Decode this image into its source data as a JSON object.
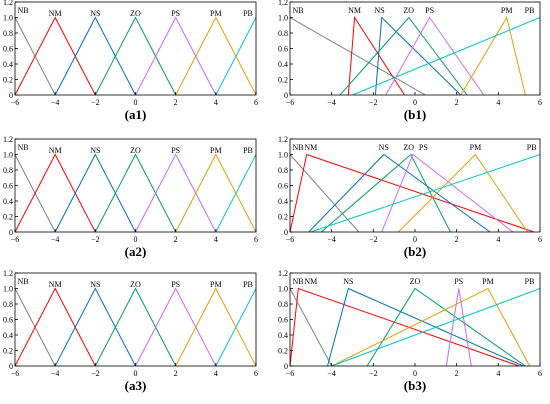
{
  "chart_data": [
    {
      "id": "a1",
      "caption": "(a1)",
      "type": "line",
      "xlim": [
        -6,
        6
      ],
      "ylim": [
        0,
        1.2
      ],
      "xticks": [
        -6,
        -4,
        -2,
        0,
        2,
        4,
        6
      ],
      "yticks": [
        0,
        0.2,
        0.4,
        0.6,
        0.8,
        1.0,
        1.2
      ],
      "grid": false,
      "series": [
        {
          "name": "NB",
          "color": "#808080",
          "x": [
            -6,
            -4
          ],
          "y": [
            1,
            0
          ],
          "label_x": -6,
          "label_y": 1.1
        },
        {
          "name": "NM",
          "color": "#ff0000",
          "x": [
            -6,
            -4,
            -2
          ],
          "y": [
            0,
            1,
            0
          ],
          "label_x": -4,
          "label_y": 1.06
        },
        {
          "name": "NS",
          "color": "#0070c0",
          "x": [
            -4,
            -2,
            0
          ],
          "y": [
            0,
            1,
            0
          ],
          "label_x": -2,
          "label_y": 1.06
        },
        {
          "name": "ZO",
          "color": "#00a060",
          "x": [
            -2,
            0,
            2
          ],
          "y": [
            0,
            1,
            0
          ],
          "label_x": 0,
          "label_y": 1.06
        },
        {
          "name": "PS",
          "color": "#cc66ff",
          "x": [
            0,
            2,
            4
          ],
          "y": [
            0,
            1,
            0
          ],
          "label_x": 2,
          "label_y": 1.06
        },
        {
          "name": "PM",
          "color": "#e0a000",
          "x": [
            2,
            4,
            6
          ],
          "y": [
            0,
            1,
            0
          ],
          "label_x": 4,
          "label_y": 1.06
        },
        {
          "name": "PB",
          "color": "#00c8c8",
          "x": [
            4,
            6
          ],
          "y": [
            0,
            1
          ],
          "label_x": 5.7,
          "label_y": 1.06
        }
      ]
    },
    {
      "id": "b1",
      "caption": "(b1)",
      "type": "line",
      "xlim": [
        -6,
        6
      ],
      "ylim": [
        0,
        1.2
      ],
      "xticks": [
        -6,
        -4,
        -2,
        0,
        2,
        4,
        6
      ],
      "yticks": [
        0,
        0.2,
        0.4,
        0.6,
        0.8,
        1.0,
        1.2
      ],
      "grid": false,
      "series": [
        {
          "name": "NB",
          "color": "#808080",
          "x": [
            -6,
            0.5
          ],
          "y": [
            1,
            0
          ],
          "label_x": -5.7,
          "label_y": 1.1
        },
        {
          "name": "NM",
          "color": "#ff0000",
          "x": [
            -3.2,
            -2.9,
            -0.5
          ],
          "y": [
            0,
            1,
            0
          ],
          "label_x": -2.9,
          "label_y": 1.1
        },
        {
          "name": "NS",
          "color": "#0070c0",
          "x": [
            -1.9,
            -1.6,
            2.2
          ],
          "y": [
            0,
            1,
            0
          ],
          "label_x": -1.7,
          "label_y": 1.1
        },
        {
          "name": "ZO",
          "color": "#00a060",
          "x": [
            -3.6,
            -0.3,
            2.5
          ],
          "y": [
            0,
            1,
            0
          ],
          "label_x": -0.3,
          "label_y": 1.1
        },
        {
          "name": "PS",
          "color": "#cc66ff",
          "x": [
            -1.4,
            0.7,
            3.3
          ],
          "y": [
            0,
            1,
            0
          ],
          "label_x": 0.7,
          "label_y": 1.1
        },
        {
          "name": "PM",
          "color": "#e0a000",
          "x": [
            2.2,
            4.4,
            5.3
          ],
          "y": [
            0,
            1,
            0
          ],
          "label_x": 4.4,
          "label_y": 1.1
        },
        {
          "name": "PB",
          "color": "#00c8c8",
          "x": [
            -3.0,
            6
          ],
          "y": [
            0,
            1
          ],
          "label_x": 5.5,
          "label_y": 1.1
        }
      ]
    },
    {
      "id": "a2",
      "caption": "(a2)",
      "type": "line",
      "xlim": [
        -6,
        6
      ],
      "ylim": [
        0,
        1.2
      ],
      "xticks": [
        -6,
        -4,
        -2,
        0,
        2,
        4,
        6
      ],
      "yticks": [
        0,
        0.2,
        0.4,
        0.6,
        0.8,
        1.0,
        1.2
      ],
      "grid": false,
      "series": [
        {
          "name": "NB",
          "color": "#808080",
          "x": [
            -6,
            -4
          ],
          "y": [
            1,
            0
          ],
          "label_x": -6,
          "label_y": 1.1
        },
        {
          "name": "NM",
          "color": "#ff0000",
          "x": [
            -6,
            -4,
            -2
          ],
          "y": [
            0,
            1,
            0
          ],
          "label_x": -4,
          "label_y": 1.06
        },
        {
          "name": "NS",
          "color": "#0070c0",
          "x": [
            -4,
            -2,
            0
          ],
          "y": [
            0,
            1,
            0
          ],
          "label_x": -2,
          "label_y": 1.06
        },
        {
          "name": "ZO",
          "color": "#00a060",
          "x": [
            -2,
            0,
            2
          ],
          "y": [
            0,
            1,
            0
          ],
          "label_x": 0,
          "label_y": 1.06
        },
        {
          "name": "PS",
          "color": "#cc66ff",
          "x": [
            0,
            2,
            4
          ],
          "y": [
            0,
            1,
            0
          ],
          "label_x": 2,
          "label_y": 1.06
        },
        {
          "name": "PM",
          "color": "#e0a000",
          "x": [
            2,
            4,
            6
          ],
          "y": [
            0,
            1,
            0
          ],
          "label_x": 4,
          "label_y": 1.06
        },
        {
          "name": "PB",
          "color": "#00c8c8",
          "x": [
            4,
            6
          ],
          "y": [
            0,
            1
          ],
          "label_x": 5.7,
          "label_y": 1.06
        }
      ]
    },
    {
      "id": "b2",
      "caption": "(b2)",
      "type": "line",
      "xlim": [
        -6,
        6
      ],
      "ylim": [
        0,
        1.2
      ],
      "xticks": [
        -6,
        -4,
        -2,
        0,
        2,
        4,
        6
      ],
      "yticks": [
        0,
        0.2,
        0.4,
        0.6,
        0.8,
        1.0,
        1.2
      ],
      "grid": false,
      "series": [
        {
          "name": "NB",
          "color": "#808080",
          "x": [
            -6,
            -2.7
          ],
          "y": [
            1,
            0
          ],
          "label_x": -5.7,
          "label_y": 1.1
        },
        {
          "name": "NM",
          "color": "#ff0000",
          "x": [
            -6,
            -5.2,
            5.7
          ],
          "y": [
            0,
            1,
            0
          ],
          "label_x": -5.0,
          "label_y": 1.1
        },
        {
          "name": "NS",
          "color": "#0070c0",
          "x": [
            -5.1,
            -1.5,
            3.6
          ],
          "y": [
            0,
            1,
            0
          ],
          "label_x": -1.5,
          "label_y": 1.1
        },
        {
          "name": "ZO",
          "color": "#00a060",
          "x": [
            -4.5,
            -0.2,
            1.7
          ],
          "y": [
            0,
            1,
            0
          ],
          "label_x": -0.3,
          "label_y": 1.1
        },
        {
          "name": "PS",
          "color": "#cc66ff",
          "x": [
            -1.6,
            -0.1,
            4.7
          ],
          "y": [
            0,
            1,
            0
          ],
          "label_x": 0.4,
          "label_y": 1.1
        },
        {
          "name": "PM",
          "color": "#e0a000",
          "x": [
            -0.8,
            2.9,
            5.4
          ],
          "y": [
            0,
            1,
            0
          ],
          "label_x": 2.9,
          "label_y": 1.1
        },
        {
          "name": "PB",
          "color": "#00c8c8",
          "x": [
            -5.0,
            6
          ],
          "y": [
            0,
            1
          ],
          "label_x": 5.6,
          "label_y": 1.1
        }
      ]
    },
    {
      "id": "a3",
      "caption": "(a3)",
      "type": "line",
      "xlim": [
        -6,
        6
      ],
      "ylim": [
        0,
        1.2
      ],
      "xticks": [
        -6,
        -4,
        -2,
        0,
        2,
        4,
        6
      ],
      "yticks": [
        0,
        0.2,
        0.4,
        0.6,
        0.8,
        1.0,
        1.2
      ],
      "grid": false,
      "series": [
        {
          "name": "NB",
          "color": "#808080",
          "x": [
            -6,
            -4
          ],
          "y": [
            1,
            0
          ],
          "label_x": -6,
          "label_y": 1.1
        },
        {
          "name": "NM",
          "color": "#ff0000",
          "x": [
            -6,
            -4,
            -2
          ],
          "y": [
            0,
            1,
            0
          ],
          "label_x": -4,
          "label_y": 1.06
        },
        {
          "name": "NS",
          "color": "#0070c0",
          "x": [
            -4,
            -2,
            0
          ],
          "y": [
            0,
            1,
            0
          ],
          "label_x": -2,
          "label_y": 1.06
        },
        {
          "name": "ZO",
          "color": "#00a060",
          "x": [
            -2,
            0,
            2
          ],
          "y": [
            0,
            1,
            0
          ],
          "label_x": 0,
          "label_y": 1.06
        },
        {
          "name": "PS",
          "color": "#cc66ff",
          "x": [
            0,
            2,
            4
          ],
          "y": [
            0,
            1,
            0
          ],
          "label_x": 2,
          "label_y": 1.06
        },
        {
          "name": "PM",
          "color": "#e0a000",
          "x": [
            2,
            4,
            6
          ],
          "y": [
            0,
            1,
            0
          ],
          "label_x": 4,
          "label_y": 1.06
        },
        {
          "name": "PB",
          "color": "#00c8c8",
          "x": [
            4,
            6
          ],
          "y": [
            0,
            1
          ],
          "label_x": 5.7,
          "label_y": 1.06
        }
      ]
    },
    {
      "id": "b3",
      "caption": "(b3)",
      "type": "line",
      "xlim": [
        -6,
        6
      ],
      "ylim": [
        0,
        1.2
      ],
      "xticks": [
        -6,
        -4,
        -2,
        0,
        2,
        4,
        6
      ],
      "yticks": [
        0,
        0.2,
        0.4,
        0.6,
        0.8,
        1.0,
        1.2
      ],
      "grid": false,
      "series": [
        {
          "name": "NB",
          "color": "#808080",
          "x": [
            -6,
            -4.0
          ],
          "y": [
            1,
            0
          ],
          "label_x": -5.7,
          "label_y": 1.1
        },
        {
          "name": "NM",
          "color": "#ff0000",
          "x": [
            -6,
            -5.6,
            5.0
          ],
          "y": [
            0,
            1,
            0
          ],
          "label_x": -5.0,
          "label_y": 1.1
        },
        {
          "name": "NS",
          "color": "#0070c0",
          "x": [
            -4.2,
            -3.2,
            5.2
          ],
          "y": [
            0,
            1,
            0
          ],
          "label_x": -3.2,
          "label_y": 1.1
        },
        {
          "name": "ZO",
          "color": "#00a060",
          "x": [
            -2.3,
            0,
            5.3
          ],
          "y": [
            0,
            1,
            0
          ],
          "label_x": 0,
          "label_y": 1.1
        },
        {
          "name": "PS",
          "color": "#cc66ff",
          "x": [
            1.5,
            2.1,
            2.7
          ],
          "y": [
            0,
            1,
            0
          ],
          "label_x": 2.1,
          "label_y": 1.1
        },
        {
          "name": "PM",
          "color": "#e0a000",
          "x": [
            -4.0,
            3.5,
            5.5
          ],
          "y": [
            0,
            1,
            0
          ],
          "label_x": 3.5,
          "label_y": 1.1
        },
        {
          "name": "PB",
          "color": "#00c8c8",
          "x": [
            -4.0,
            6
          ],
          "y": [
            0,
            1
          ],
          "label_x": 5.5,
          "label_y": 1.1
        }
      ]
    }
  ]
}
